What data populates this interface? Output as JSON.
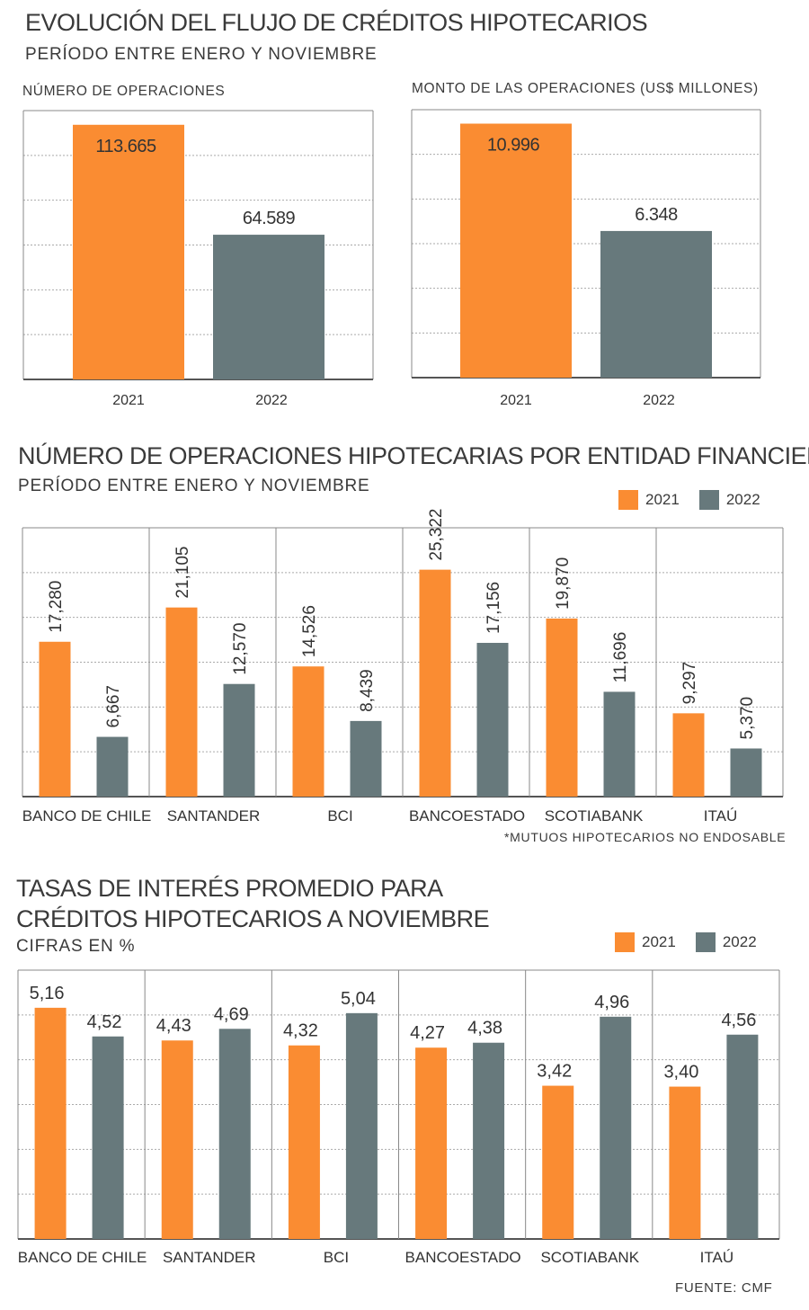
{
  "colors": {
    "y2021": "#fa8c32",
    "y2022": "#67797c",
    "grid": "#aaaaaa",
    "frame": "#888888"
  },
  "section1": {
    "title": "EVOLUCIÓN DEL FLUJO DE CRÉDITOS HIPOTECARIOS",
    "subtitle": "PERÍODO ENTRE ENERO Y NOVIEMBRE"
  },
  "section2": {
    "title": "NÚMERO DE OPERACIONES HIPOTECARIAS POR ENTIDAD FINANCIERA*",
    "subtitle": "PERÍODO ENTRE ENERO Y NOVIEMBRE",
    "footnote": "*MUTUOS HIPOTECARIOS NO ENDOSABLE",
    "legend": [
      "2021",
      "2022"
    ]
  },
  "section3": {
    "title_line1": "TASAS DE INTERÉS PROMEDIO PARA",
    "title_line2": "CRÉDITOS HIPOTECARIOS A NOVIEMBRE",
    "subtitle": "CIFRAS EN %",
    "legend": [
      "2021",
      "2022"
    ]
  },
  "source": "FUENTE: CMF",
  "chart_data": [
    {
      "type": "bar",
      "title": "NÚMERO DE OPERACIONES",
      "categories": [
        "2021",
        "2022"
      ],
      "values": [
        113665,
        64589
      ],
      "value_labels": [
        "113.665",
        "64.589"
      ],
      "ylim": [
        0,
        120000
      ],
      "grid": true
    },
    {
      "type": "bar",
      "title": "MONTO DE LAS OPERACIONES  (US$ MILLONES)",
      "categories": [
        "2021",
        "2022"
      ],
      "values": [
        10996,
        6348
      ],
      "value_labels": [
        "10.996",
        "6.348"
      ],
      "ylim": [
        0,
        11600
      ],
      "grid": true
    },
    {
      "type": "bar",
      "categories": [
        "BANCO DE CHILE",
        "SANTANDER",
        "BCI",
        "BANCOESTADO",
        "SCOTIABANK",
        "ITAÚ"
      ],
      "series": [
        {
          "name": "2021",
          "values": [
            17280,
            21105,
            14526,
            25322,
            19870,
            9297
          ],
          "labels": [
            "17,280",
            "21,105",
            "14,526",
            "25,322",
            "19,870",
            "9,297"
          ]
        },
        {
          "name": "2022",
          "values": [
            6667,
            12570,
            8439,
            17156,
            11696,
            5370
          ],
          "labels": [
            "6,667",
            "12,570",
            "8,439",
            "17,156",
            "11,696",
            "5,370"
          ]
        }
      ],
      "ylim": [
        0,
        30000
      ],
      "grid": true,
      "legend": "top-right"
    },
    {
      "type": "bar",
      "categories": [
        "BANCO DE CHILE",
        "SANTANDER",
        "BCI",
        "BANCOESTADO",
        "SCOTIABANK",
        "ITAÚ"
      ],
      "series": [
        {
          "name": "2021",
          "values": [
            5.16,
            4.43,
            4.32,
            4.27,
            3.42,
            3.4
          ],
          "labels": [
            "5,16",
            "4,43",
            "4,32",
            "4,27",
            "3,42",
            "3,40"
          ]
        },
        {
          "name": "2022",
          "values": [
            4.52,
            4.69,
            5.04,
            4.38,
            4.96,
            4.56
          ],
          "labels": [
            "4,52",
            "4,69",
            "5,04",
            "4,38",
            "4,96",
            "4,56"
          ]
        }
      ],
      "ylim": [
        0,
        6
      ],
      "grid": true,
      "legend": "top-right"
    }
  ]
}
